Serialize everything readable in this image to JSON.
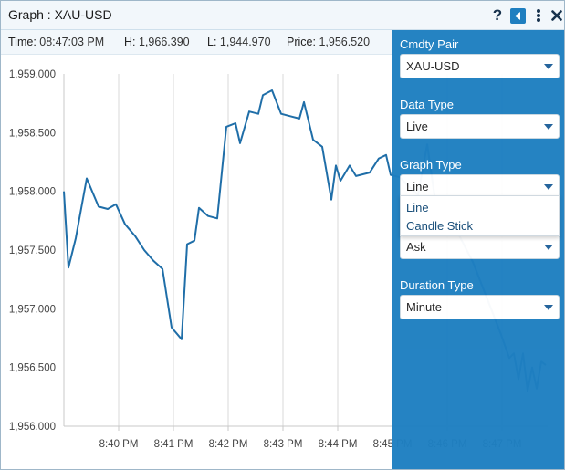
{
  "window": {
    "title": "Graph : XAU-USD"
  },
  "info": {
    "time_key": "Time:",
    "time_val": "08:47:03 PM",
    "high_key": "H:",
    "high_val": "1,966.390",
    "low_key": "L:",
    "low_val": "1,944.970",
    "price_key": "Price:",
    "price_val": "1,956.520"
  },
  "panel": {
    "cmdty_label": "Cmdty Pair",
    "cmdty_value": "XAU-USD",
    "datatype_label": "Data Type",
    "datatype_value": "Live",
    "graphtype_label": "Graph Type",
    "graphtype_value": "Line",
    "pricetype_value": "Ask",
    "duration_label": "Duration Type",
    "duration_value": "Minute"
  },
  "graph_type_options": [
    "Line",
    "Candle Stick"
  ],
  "colors": {
    "line": "#1f6ea8",
    "panel": "#1e7fc1",
    "grid": "#d9d9d9"
  },
  "icons": [
    "help-icon",
    "collapse-panel-icon",
    "more-vertical-icon",
    "close-icon"
  ],
  "chart_data": {
    "type": "line",
    "ylim": [
      1956.0,
      1959.0
    ],
    "ytick_labels": [
      "1,959.000",
      "1,958.500",
      "1,958.000",
      "1,957.500",
      "1,957.000",
      "1,956.500",
      "1,956.000"
    ],
    "yticks": [
      1959.0,
      1958.5,
      1958.0,
      1957.5,
      1957.0,
      1956.5,
      1956.0
    ],
    "xtick_labels": [
      "8:40 PM",
      "8:41 PM",
      "8:42 PM",
      "8:43 PM",
      "8:44 PM",
      "8:45 PM",
      "8:46 PM",
      "8:47 PM"
    ],
    "xticks": [
      60,
      120,
      180,
      240,
      300,
      360,
      420,
      480
    ],
    "xlim": [
      0,
      530
    ],
    "x": [
      0,
      5,
      13,
      25,
      38,
      48,
      57,
      67,
      78,
      88,
      98,
      108,
      118,
      129,
      135,
      143,
      148,
      158,
      168,
      178,
      188,
      193,
      203,
      213,
      218,
      228,
      238,
      248,
      258,
      263,
      273,
      283,
      293,
      298,
      303,
      313,
      320,
      335,
      345,
      353,
      358,
      368,
      378,
      388,
      398,
      408,
      418,
      428,
      438,
      448,
      458,
      468,
      478,
      488,
      493,
      498,
      503,
      508,
      513,
      518,
      523,
      528
    ],
    "y": [
      1958.0,
      1957.35,
      1957.6,
      1958.11,
      1957.87,
      1957.85,
      1957.89,
      1957.72,
      1957.62,
      1957.5,
      1957.41,
      1957.34,
      1956.84,
      1956.74,
      1957.55,
      1957.58,
      1957.86,
      1957.79,
      1957.77,
      1958.55,
      1958.58,
      1958.41,
      1958.68,
      1958.66,
      1958.82,
      1958.86,
      1958.66,
      1958.64,
      1958.62,
      1958.76,
      1958.44,
      1958.38,
      1957.93,
      1958.22,
      1958.09,
      1958.22,
      1958.13,
      1958.16,
      1958.28,
      1958.31,
      1958.14,
      1958.12,
      1958.04,
      1957.97,
      1958.4,
      1957.86,
      1957.76,
      1957.7,
      1957.55,
      1957.4,
      1957.2,
      1957.0,
      1956.8,
      1956.58,
      1956.62,
      1956.4,
      1956.62,
      1956.3,
      1956.5,
      1956.32,
      1956.55,
      1956.52
    ]
  }
}
